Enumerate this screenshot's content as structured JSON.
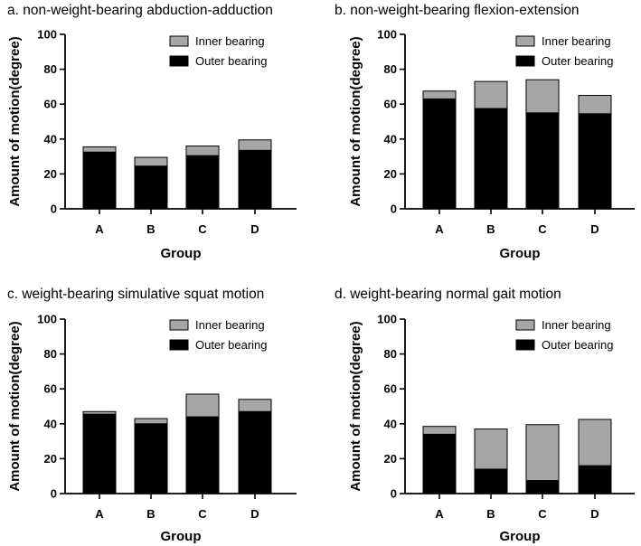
{
  "chart_data": [
    {
      "type": "bar",
      "stacked": true,
      "title": "a.  non-weight-bearing abduction-adduction",
      "xlabel": "Group",
      "ylabel": "Amount of motion(degree)",
      "categories": [
        "A",
        "B",
        "C",
        "D"
      ],
      "ylim": [
        0,
        100
      ],
      "yticks": [
        0,
        20,
        40,
        60,
        80,
        100
      ],
      "series": [
        {
          "name": "Outer bearing",
          "color": "#000000",
          "values": [
            32.5,
            24.5,
            30.5,
            33.5
          ]
        },
        {
          "name": "Inner bearing",
          "color": "#a6a6a6",
          "values": [
            3,
            5,
            5.5,
            6
          ]
        }
      ],
      "legend": "top-right"
    },
    {
      "type": "bar",
      "stacked": true,
      "title": "b.  non-weight-bearing flexion-extension",
      "xlabel": "Group",
      "ylabel": "Amount of motion(degree)",
      "categories": [
        "A",
        "B",
        "C",
        "D"
      ],
      "ylim": [
        0,
        100
      ],
      "yticks": [
        0,
        20,
        40,
        60,
        80,
        100
      ],
      "series": [
        {
          "name": "Outer bearing",
          "color": "#000000",
          "values": [
            63,
            57.5,
            55,
            54.5
          ]
        },
        {
          "name": "Inner bearing",
          "color": "#a6a6a6",
          "values": [
            4.5,
            15.5,
            19,
            10.5
          ]
        }
      ],
      "legend": "top-right"
    },
    {
      "type": "bar",
      "stacked": true,
      "title": "c.  weight-bearing simulative squat motion",
      "xlabel": "Group",
      "ylabel": "Amount of motion(degree)",
      "categories": [
        "A",
        "B",
        "C",
        "D"
      ],
      "ylim": [
        0,
        100
      ],
      "yticks": [
        0,
        20,
        40,
        60,
        80,
        100
      ],
      "series": [
        {
          "name": "Outer bearing",
          "color": "#000000",
          "values": [
            45.5,
            40,
            44,
            47
          ]
        },
        {
          "name": "Inner bearing",
          "color": "#a6a6a6",
          "values": [
            1.5,
            3,
            13,
            7
          ]
        }
      ],
      "legend": "top-right"
    },
    {
      "type": "bar",
      "stacked": true,
      "title": "d.  weight-bearing normal gait motion",
      "xlabel": "Group",
      "ylabel": "Amount of motion(degree)",
      "categories": [
        "A",
        "B",
        "C",
        "D"
      ],
      "ylim": [
        0,
        100
      ],
      "yticks": [
        0,
        20,
        40,
        60,
        80,
        100
      ],
      "series": [
        {
          "name": "Outer bearing",
          "color": "#000000",
          "values": [
            34,
            14,
            7.5,
            16
          ]
        },
        {
          "name": "Inner bearing",
          "color": "#a6a6a6",
          "values": [
            4.5,
            23,
            32,
            26.5
          ]
        }
      ],
      "legend": "top-right"
    }
  ]
}
